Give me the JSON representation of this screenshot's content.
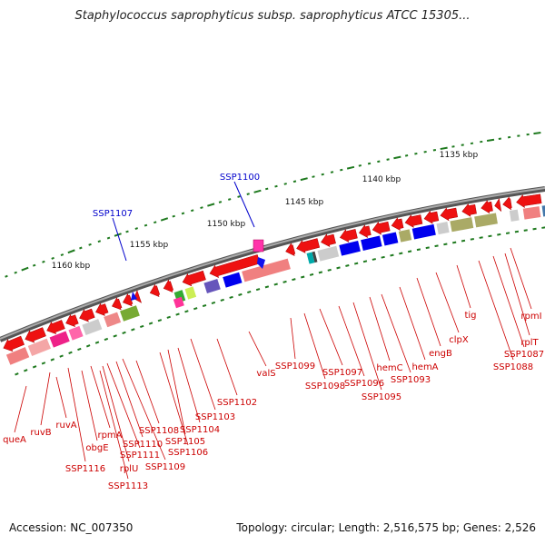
{
  "title": "Staphylococcus saprophyticus subsp. saprophyticus ATCC 15305...",
  "footer": {
    "accession": "Accession: NC_007350",
    "stats": "Topology: circular; Length: 2,516,575 bp; Genes: 2,526"
  },
  "colors": {
    "gene_label": "#cc0000",
    "highlight_label": "#0000cc",
    "tick": "#1f7a1f",
    "backbone": "#777777",
    "arrow": "#ee1111"
  },
  "scale_labels": [
    "1135 kbp",
    "1140 kbp",
    "1145 kbp",
    "1150 kbp",
    "1155 kbp",
    "1160 kbp"
  ],
  "highlighted_genes": [
    "SSP1100",
    "SSP1107"
  ],
  "gene_labels": [
    "queA",
    "ruvB",
    "ruvA",
    "SSP1116",
    "obgE",
    "rpmA",
    "rplU",
    "SSP1113",
    "SSP1111",
    "SSP1110",
    "SSP1109",
    "SSP1108",
    "SSP1106",
    "SSP1105",
    "SSP1104",
    "SSP1103",
    "SSP1102",
    "valS",
    "SSP1099",
    "SSP1098",
    "SSP1097",
    "SSP1096",
    "SSP1095",
    "hemC",
    "SSP1093",
    "hemA",
    "engB",
    "clpX",
    "tig",
    "SSP1088",
    "SSP1087",
    "rplT",
    "rpmI"
  ]
}
